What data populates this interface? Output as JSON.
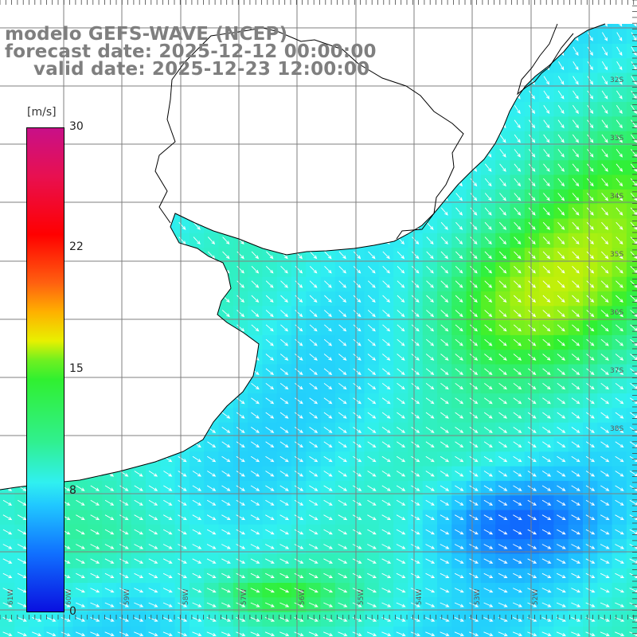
{
  "title": {
    "line1": "modelo GEFS-WAVE (NCEP)",
    "line2": "forecast date: 2025-12-12 00:00:00",
    "line3": "valid date: 2025-12-23 12:00:00"
  },
  "colorbar": {
    "unit": "[m/s]",
    "ticks": [
      "30",
      "22",
      "15",
      "8",
      "0"
    ],
    "range": [
      0,
      30
    ],
    "colors": {
      "low": "#0a10e0",
      "mid_low": "#30f0f0",
      "mid": "#30f030",
      "mid_high": "#ffb000",
      "high": "#ff0000",
      "max": "#c81088"
    }
  },
  "map": {
    "variable": "wind speed and direction",
    "graticule_lat_labels": [
      "32S",
      "33S",
      "34S",
      "35S",
      "36S",
      "37S",
      "38S"
    ],
    "graticule_lon_labels": [
      "61W",
      "60W",
      "59W",
      "58W",
      "57W",
      "56W",
      "55W",
      "54W",
      "53W",
      "52W"
    ],
    "land_color": "#ffffff",
    "coastline_color": "#000000",
    "grid_color": "#7f7f7f"
  }
}
